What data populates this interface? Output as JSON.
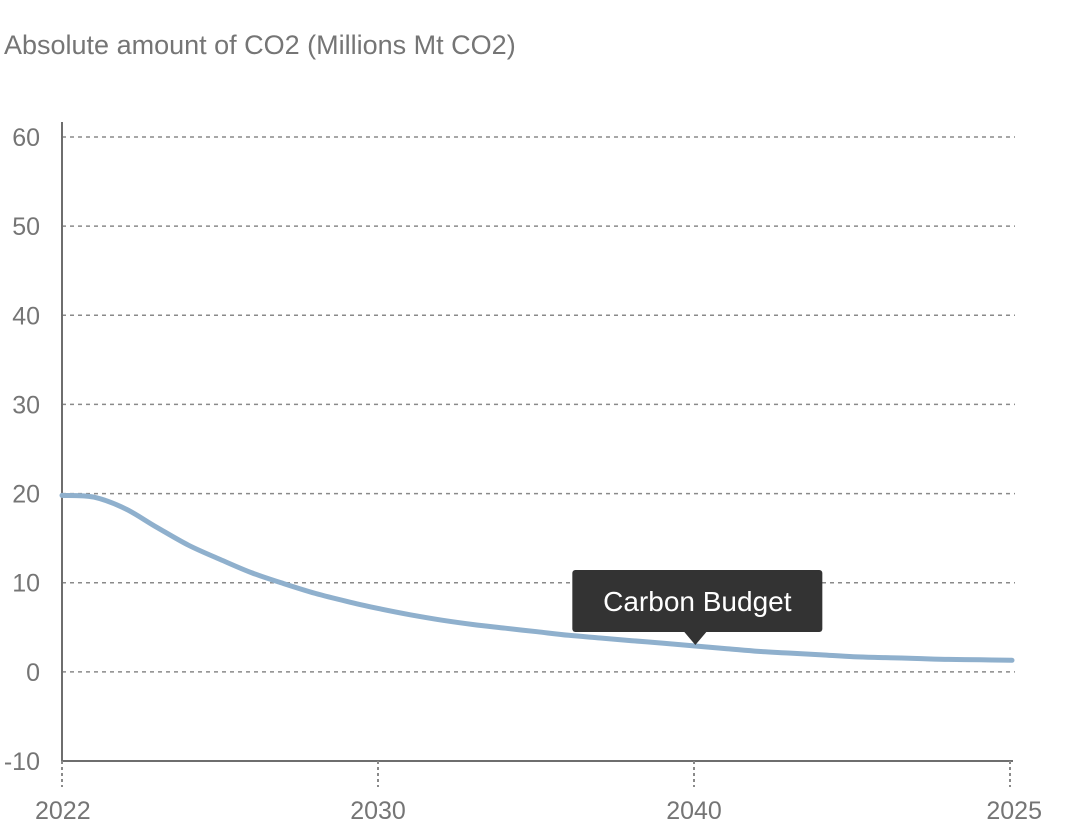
{
  "chart_data": {
    "type": "line",
    "title": "Absolute amount of CO2 (Millions Mt CO2)",
    "xlabel": "",
    "ylabel": "",
    "x_ticks": [
      "2022",
      "2030",
      "2040",
      "2025"
    ],
    "y_ticks": [
      "60",
      "50",
      "40",
      "30",
      "20",
      "10",
      "0",
      "-10"
    ],
    "ylim": [
      -10,
      60
    ],
    "grid": true,
    "series": [
      {
        "name": "Carbon Budget",
        "color": "#8fb0cd",
        "x": [
          2022,
          2023,
          2024,
          2025,
          2026,
          2027,
          2028,
          2029,
          2030,
          2031,
          2032,
          2033,
          2034,
          2035,
          2036,
          2037,
          2038,
          2039,
          2040,
          2041,
          2042,
          2043,
          2044,
          2045,
          2046,
          2047,
          2048,
          2049,
          2050,
          2051,
          2052
        ],
        "values": [
          19.8,
          19.6,
          18.3,
          16.2,
          14.2,
          12.6,
          11.1,
          9.9,
          8.8,
          7.9,
          7.1,
          6.4,
          5.8,
          5.3,
          4.9,
          4.5,
          4.1,
          3.8,
          3.5,
          3.2,
          2.9,
          2.6,
          2.3,
          2.1,
          1.9,
          1.7,
          1.6,
          1.5,
          1.4,
          1.35,
          1.3
        ]
      }
    ],
    "annotation": {
      "text": "Carbon Budget",
      "x": 2042,
      "y": 2.9
    }
  }
}
